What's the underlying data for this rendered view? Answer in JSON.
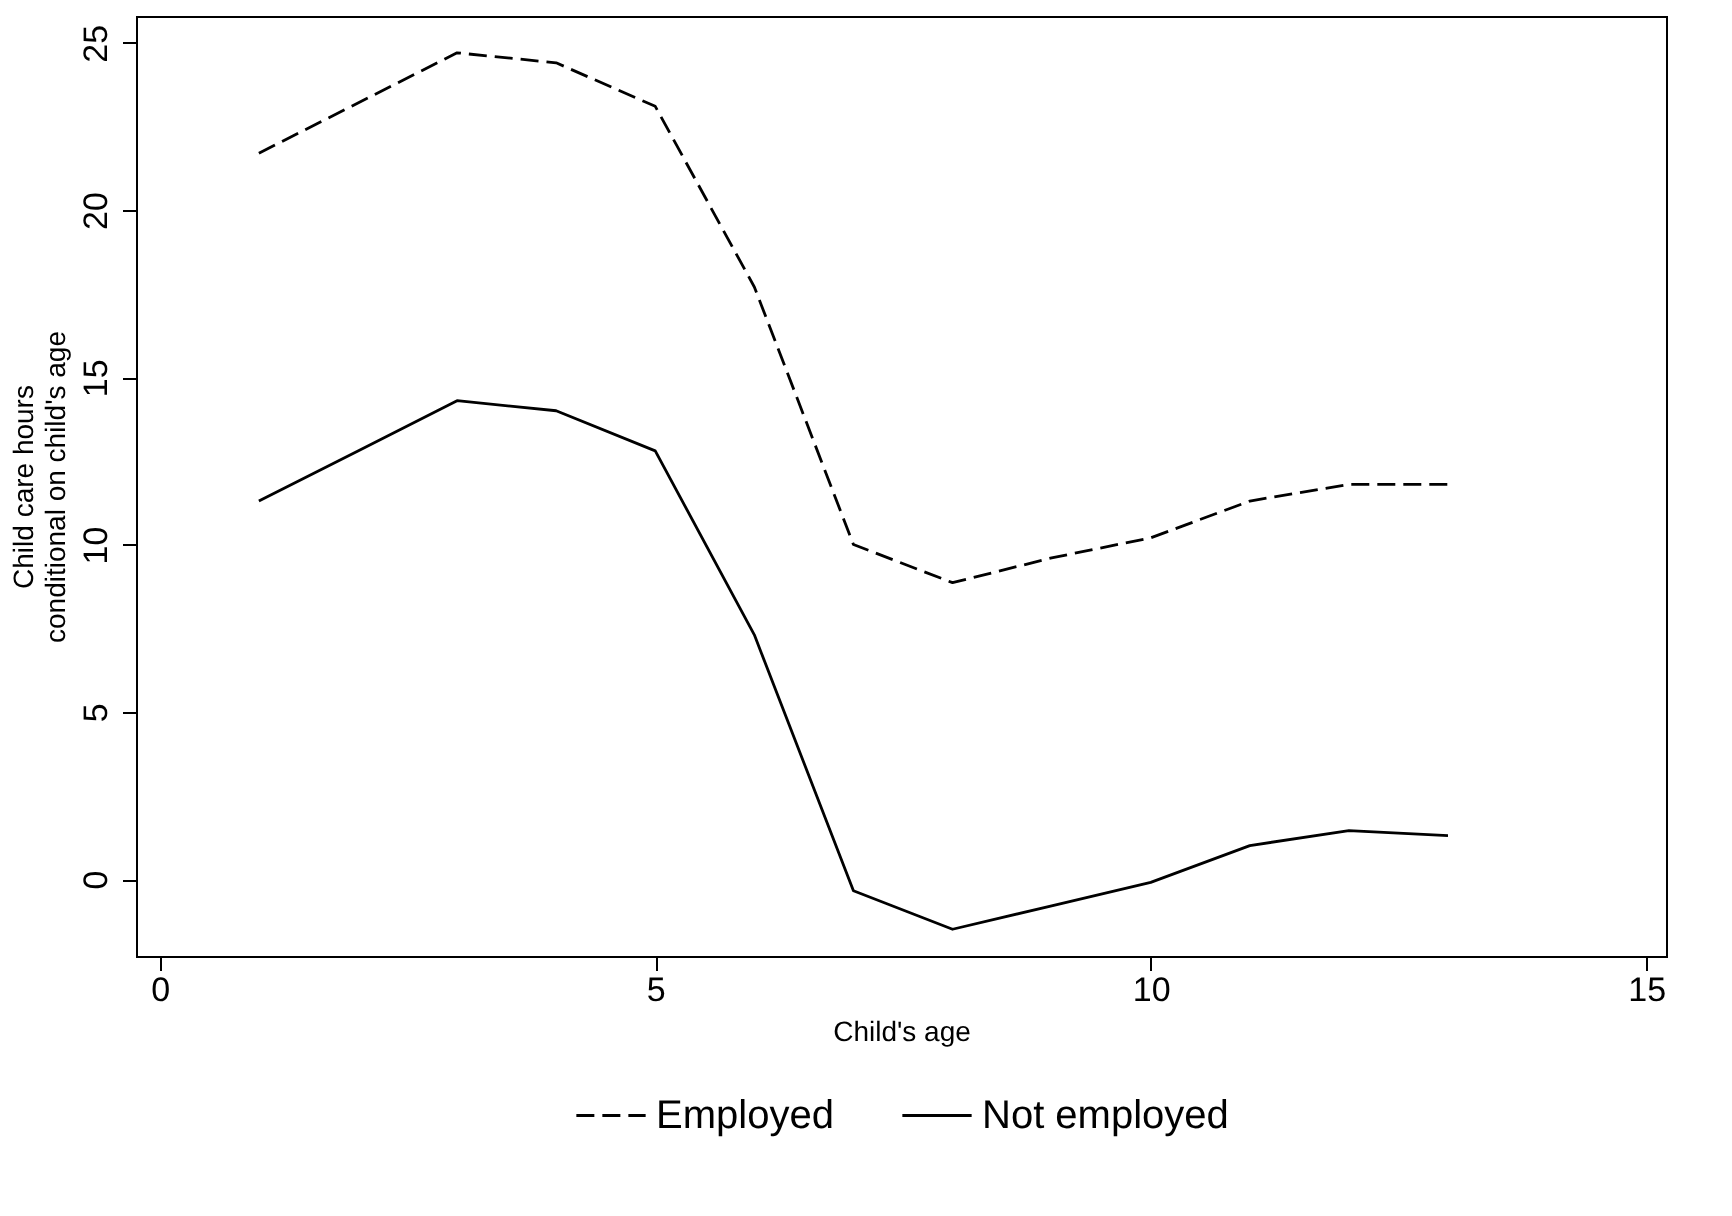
{
  "chart_data": {
    "type": "line",
    "xlabel": "Child's age",
    "ylabel": "Child care hours\nconditional on child's age",
    "x": [
      1,
      2,
      3,
      4,
      5,
      6,
      7,
      8,
      9,
      10,
      11,
      12,
      13
    ],
    "xlim": [
      -0.24,
      15.2
    ],
    "xticks": [
      0,
      5,
      10,
      15
    ],
    "ylim": [
      -2.3,
      25.8
    ],
    "yticks": [
      0,
      5,
      10,
      15,
      20,
      25
    ],
    "grid": false,
    "legend": "bottom",
    "marker": "none",
    "series": [
      {
        "name": "Employed",
        "color": "#000000",
        "line_style": "dashed",
        "values": [
          21.7,
          23.2,
          24.7,
          24.4,
          23.1,
          17.7,
          10.0,
          8.86,
          9.6,
          10.2,
          11.3,
          11.8,
          11.8
        ]
      },
      {
        "name": "Not employed",
        "color": "#000000",
        "line_style": "solid",
        "values": [
          11.3,
          12.8,
          14.3,
          14.0,
          12.8,
          7.3,
          -0.35,
          -1.5,
          -0.8,
          -0.1,
          1.0,
          1.45,
          1.3
        ]
      }
    ]
  }
}
